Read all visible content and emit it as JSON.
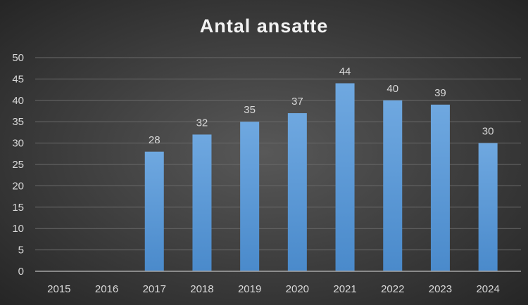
{
  "chart_data": {
    "type": "bar",
    "title": "Antal ansatte",
    "xlabel": "",
    "ylabel": "",
    "categories": [
      "2015",
      "2016",
      "2017",
      "2018",
      "2019",
      "2020",
      "2021",
      "2022",
      "2023",
      "2024"
    ],
    "values": [
      null,
      null,
      28,
      32,
      35,
      37,
      44,
      40,
      39,
      30
    ],
    "ylim": [
      0,
      50
    ],
    "yticks": [
      0,
      5,
      10,
      15,
      20,
      25,
      30,
      35,
      40,
      45,
      50
    ],
    "grid": true,
    "legend": "none",
    "data_labels": true,
    "colors": {
      "bar_top": "#6fa8e0",
      "bar_bottom": "#4a8acb",
      "background_center": "#585858",
      "background_edge": "#262626",
      "text": "#d9d9d9"
    }
  }
}
